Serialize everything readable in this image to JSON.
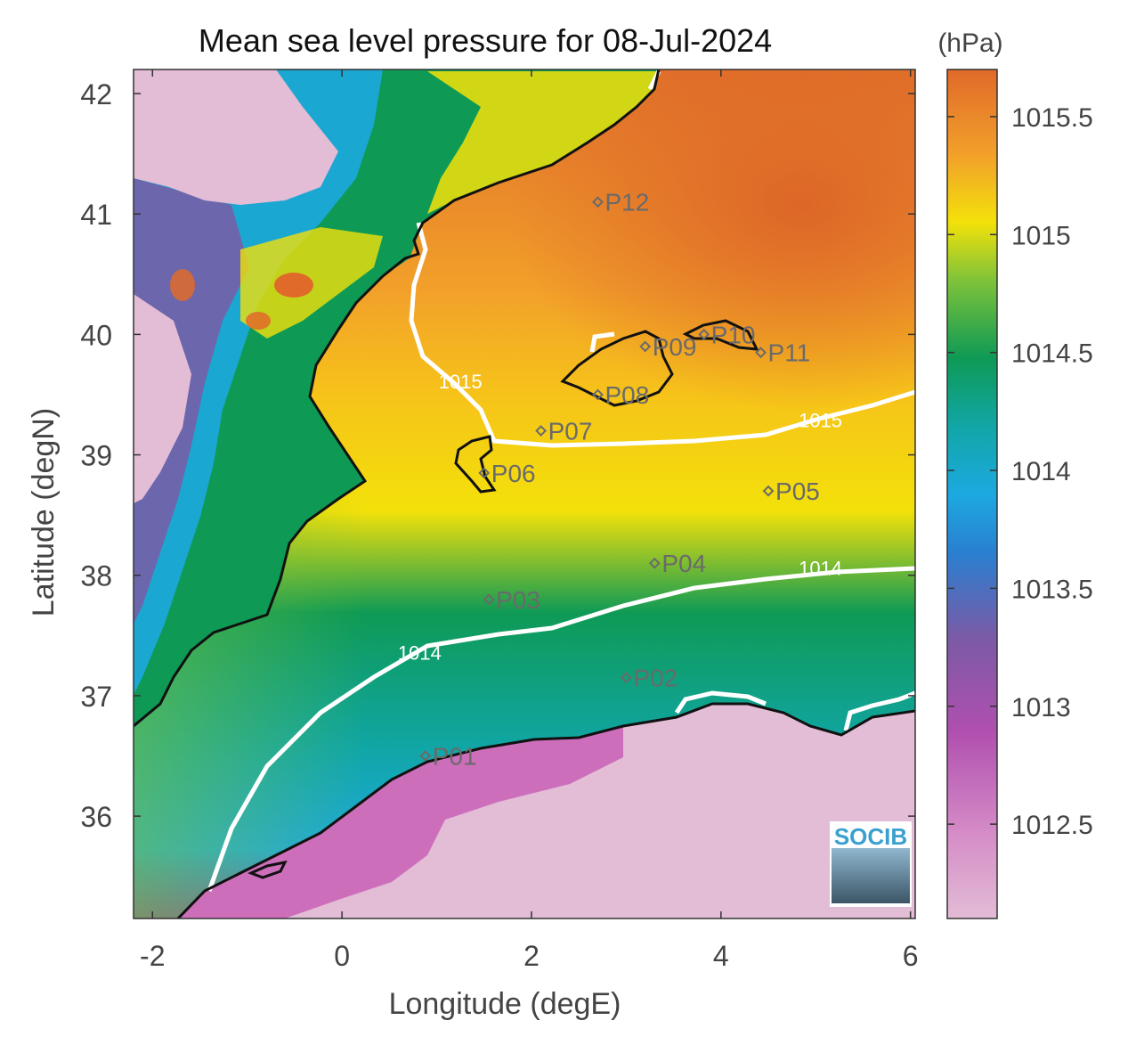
{
  "title": "Mean sea level pressure for 08-Jul-2024",
  "colorbar_unit": "(hPa)",
  "xlabel": "Longitude (degE)",
  "ylabel": "Latitude (degN)",
  "logo": "SOCIB",
  "map_data": {
    "type": "heatmap",
    "xlim": [
      -2.2,
      6.05
    ],
    "ylim": [
      35.15,
      42.2
    ],
    "x_ticks": [
      -2,
      0,
      2,
      4,
      6
    ],
    "y_ticks": [
      36,
      37,
      38,
      39,
      40,
      41,
      42
    ],
    "colorbar": {
      "min": 1012.1,
      "max": 1015.7,
      "ticks": [
        1012.5,
        1013,
        1013.5,
        1014,
        1014.5,
        1015,
        1015.5
      ]
    },
    "contour_labels": [
      {
        "text": "1015",
        "lon": 1.25,
        "lat": 39.55
      },
      {
        "text": "1015",
        "lon": 5.05,
        "lat": 39.23
      },
      {
        "text": "1014",
        "lon": 5.05,
        "lat": 38.0
      },
      {
        "text": "1014",
        "lon": 0.82,
        "lat": 37.3
      }
    ],
    "stations": [
      {
        "label": "P01",
        "lon": 0.88,
        "lat": 36.5
      },
      {
        "label": "P02",
        "lon": 3.0,
        "lat": 37.15
      },
      {
        "label": "P03",
        "lon": 1.55,
        "lat": 37.8
      },
      {
        "label": "P04",
        "lon": 3.3,
        "lat": 38.1
      },
      {
        "label": "P05",
        "lon": 4.5,
        "lat": 38.7
      },
      {
        "label": "P06",
        "lon": 1.5,
        "lat": 38.85
      },
      {
        "label": "P07",
        "lon": 2.1,
        "lat": 39.2
      },
      {
        "label": "P08",
        "lon": 2.7,
        "lat": 39.5
      },
      {
        "label": "P09",
        "lon": 3.2,
        "lat": 39.9
      },
      {
        "label": "P10",
        "lon": 3.82,
        "lat": 40.0
      },
      {
        "label": "P11",
        "lon": 4.42,
        "lat": 39.85
      },
      {
        "label": "P12",
        "lon": 2.7,
        "lat": 41.1
      }
    ]
  },
  "colors": {
    "cmap": [
      "#e3bcd6",
      "#c75ab4",
      "#7b5aa6",
      "#1ca9e0",
      "#11a6a6",
      "#0e9a55",
      "#f3e10a",
      "#f2a02a",
      "#e06a2a"
    ],
    "land_low": "#e3bcd6",
    "coast": "#111111",
    "contour": "#ffffff",
    "station": "#6a6a6a"
  }
}
